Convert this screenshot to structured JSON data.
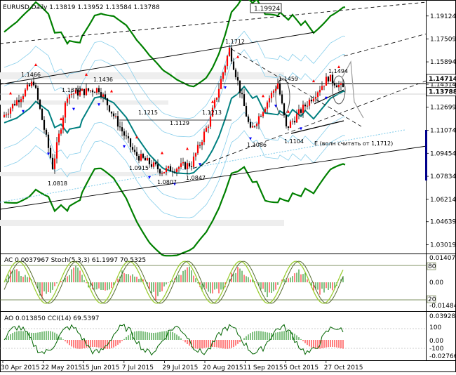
{
  "symbol_header": "EURUSD,Daily  1.13819 1.13952 1.13584 1.13788",
  "price_labels": [
    {
      "text": "1.19124",
      "price": 1.19124
    },
    {
      "text": "1.17509",
      "price": 1.17509
    },
    {
      "text": "1.15894",
      "price": 1.15894
    },
    {
      "text": "1.14314",
      "price": 1.14314
    },
    {
      "text": "1.12699",
      "price": 1.12699
    },
    {
      "text": "1.11074",
      "price": 1.11074
    },
    {
      "text": "1.09454",
      "price": 1.09454
    },
    {
      "text": "1.07834",
      "price": 1.07834
    },
    {
      "text": "1.06214",
      "price": 1.06214
    },
    {
      "text": "1.04639",
      "price": 1.04639
    },
    {
      "text": "1.03019",
      "price": 1.03019
    }
  ],
  "highlight_labels": [
    {
      "text": "1.14714",
      "price": 1.14714,
      "bg": "#ffffff",
      "fg": "#000000",
      "border": "#000000"
    },
    {
      "text": "1.13788",
      "price": 1.13788,
      "bg": "#ffffff",
      "fg": "#000000",
      "border": "#000000"
    }
  ],
  "top_box_label": "1.19924",
  "annotations": [
    {
      "text": "1.1466",
      "day": 15
    },
    {
      "text": "1.1379",
      "day": 31
    },
    {
      "text": "1.1436",
      "day": 46
    },
    {
      "text": "1.1215",
      "day": 67
    },
    {
      "text": "1.1129",
      "day": 80
    },
    {
      "text": "1.1213",
      "day": 99
    },
    {
      "text": "1.1712",
      "day": 108
    },
    {
      "text": "1.1459",
      "day": 131
    },
    {
      "text": "1.1494",
      "day": 155
    },
    {
      "text": "1.0818",
      "day": 24
    },
    {
      "text": "1.0915",
      "day": 63
    },
    {
      "text": "1.0807",
      "day": 76
    },
    {
      "text": "1.0847",
      "day": 90
    },
    {
      "text": "1.1086",
      "day": 118
    },
    {
      "text": "1.1104",
      "day": 135
    }
  ],
  "note_text": "E (волн считать от 1,1712)",
  "stoch_panel": {
    "header": "AC 0.0037967  Stoch(5,3,3) 61.1997 70.5325",
    "right_labels": [
      "0.014073",
      "0.00",
      "-0.014846"
    ],
    "level_labels": [
      "80",
      "20"
    ]
  },
  "cci_panel": {
    "header": "AO 0.013850  CCI(14) 69.5397",
    "right_labels": [
      "0.039286",
      "100",
      "0.00",
      "-100",
      "-0.027669"
    ]
  },
  "date_labels": [
    {
      "text": "30 Apr 2015",
      "day": 0
    },
    {
      "text": "22 May 2015",
      "day": 16
    },
    {
      "text": "15 Jun 2015",
      "day": 32
    },
    {
      "text": "7 Jul 2015",
      "day": 48
    },
    {
      "text": "29 Jul 2015",
      "day": 64
    },
    {
      "text": "20 Aug 2015",
      "day": 80
    },
    {
      "text": "11 Sep 2015",
      "day": 96
    },
    {
      "text": "5 Oct 2015",
      "day": 112
    },
    {
      "text": "27 Oct 2015",
      "day": 128
    }
  ],
  "colors": {
    "bull_candle": "#ff0000",
    "bear_candle": "#000000",
    "envelope": "#008000",
    "mid_line": "#008080",
    "bands": "#87ceeb",
    "stoch_main": "#9acd32",
    "stoch_signal": "#556b2f",
    "hist_up": "#008000",
    "hist_down": "#ff0000",
    "cci_line": "#006400",
    "fractal_up": "#ff0000",
    "fractal_down": "#0000ff",
    "right_marker": "#00008b"
  },
  "chart_data": {
    "type": "candlestick",
    "price_range": [
      1.0245,
      1.2015
    ],
    "bars": 165,
    "ohlc_summary": [
      {
        "day": 0,
        "c": 1.12
      },
      {
        "day": 15,
        "c": 1.145
      },
      {
        "day": 24,
        "c": 1.085
      },
      {
        "day": 31,
        "c": 1.136
      },
      {
        "day": 46,
        "c": 1.14
      },
      {
        "day": 63,
        "c": 1.094
      },
      {
        "day": 76,
        "c": 1.082
      },
      {
        "day": 90,
        "c": 1.087
      },
      {
        "day": 99,
        "c": 1.119
      },
      {
        "day": 108,
        "c": 1.168
      },
      {
        "day": 118,
        "c": 1.11
      },
      {
        "day": 131,
        "c": 1.144
      },
      {
        "day": 135,
        "c": 1.112
      },
      {
        "day": 155,
        "c": 1.148
      },
      {
        "day": 164,
        "c": 1.13788
      }
    ]
  }
}
